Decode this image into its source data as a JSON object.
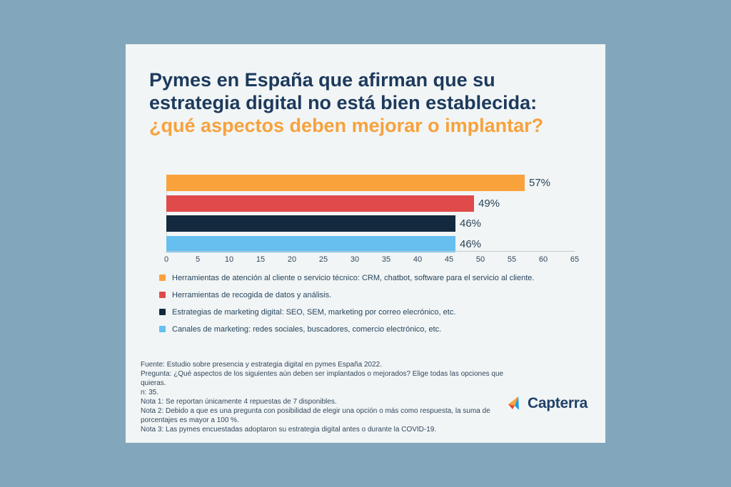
{
  "page": {
    "background_color": "#82A7BC",
    "card_background_color": "#F1F5F6"
  },
  "title": {
    "line1": "Pymes en España que afirman que su",
    "line2": "estrategia digital no está bien establecida:",
    "line3": "¿qué aspectos deben mejorar o implantar?",
    "main_color": "#1D3A5C",
    "highlight_color": "#F7A23C"
  },
  "chart_data": {
    "type": "bar",
    "orientation": "horizontal",
    "title": "Pymes en España que afirman que su estrategia digital no está bien establecida: ¿qué aspectos deben mejorar o implantar?",
    "xlabel": "",
    "ylabel": "",
    "xlim": [
      0,
      65
    ],
    "x_ticks": [
      0,
      5,
      10,
      15,
      20,
      25,
      30,
      35,
      40,
      45,
      50,
      55,
      60,
      65
    ],
    "grid": false,
    "legend_position": "bottom",
    "categories": [
      "Herramientas de atención al cliente o servicio técnico: CRM, chatbot, software para el servicio al cliente.",
      "Herramientas de recogida de datos y análisis.",
      "Estrategias de marketing digital: SEO, SEM, marketing por correo elecrónico, etc.",
      "Canales de marketing: redes sociales, buscadores, comercio electrónico, etc."
    ],
    "values": [
      57,
      49,
      46,
      46
    ],
    "series": [
      {
        "label": "Herramientas de atención al cliente o servicio técnico: CRM, chatbot, software para el servicio al cliente.",
        "value": 57,
        "value_label": "57%",
        "color": "#F9A23B"
      },
      {
        "label": "Herramientas de recogida de datos y análisis.",
        "value": 49,
        "value_label": "49%",
        "color": "#E04A4A"
      },
      {
        "label": "Estrategias de marketing digital: SEO, SEM, marketing por correo elecrónico, etc.",
        "value": 46,
        "value_label": "46%",
        "color": "#13293E"
      },
      {
        "label": "Canales de marketing: redes sociales, buscadores, comercio electrónico, etc.",
        "value": 46,
        "value_label": "46%",
        "color": "#66BFEE"
      }
    ],
    "axis_line_color": "#C2CBD1",
    "tick_text_color": "#33475B",
    "value_text_color": "#2C4257"
  },
  "notes": {
    "lines": [
      "Fuente: Estudio sobre presencia y estrategia digital en pymes España 2022.",
      "Pregunta: ¿Qué aspectos de los siguientes aún deben ser implantados o mejorados? Elige todas las opciones que quieras.",
      "n: 35.",
      "Nota 1: Se reportan únicamente 4 repuestas de 7 disponibles.",
      "Nota 2: Debido a que es una pregunta con posibilidad de elegir una opción o más como respuesta, la suma de porcentajes es mayor a 100 %.",
      "Nota 3: Las pymes encuestadas adoptaron su estrategia digital antes o durante la COVID-19."
    ]
  },
  "branding": {
    "logo_text": "Capterra",
    "logo_icon": "capterra-arrow-icon",
    "logo_text_color": "#1F4168",
    "logo_orange": "#FFA33A",
    "logo_red": "#E8472E",
    "logo_blue": "#1B9DE2"
  }
}
